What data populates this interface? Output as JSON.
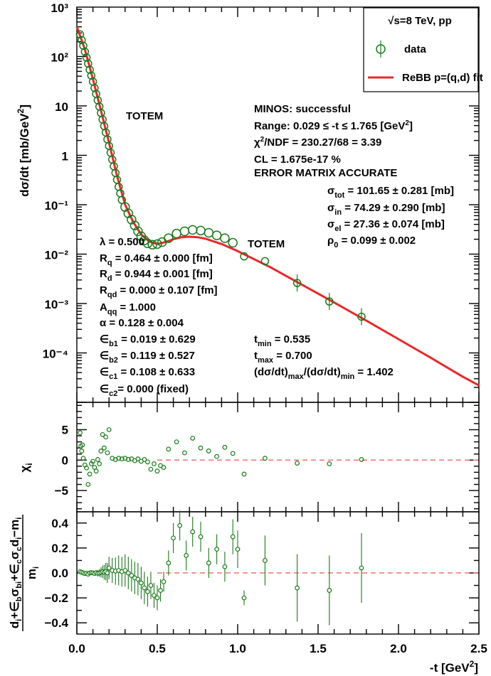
{
  "legend": {
    "title": "√s=8 TeV, pp",
    "data_label": "data",
    "fit_label": "ReBB p=(q,d) fit"
  },
  "labels": {
    "totem_1": "TOTEM",
    "totem_2": "TOTEM",
    "minos": "MINOS: successful",
    "range": "Range: 0.029 ≤ -t ≤ 1.765 [GeV²]",
    "chi2": "χ²/NDF = 230.27/68 = 3.39",
    "cl": "CL = 1.675e-17 %",
    "error_matrix": "ERROR MATRIX ACCURATE",
    "sigma_tot": "σtot = 101.65 ± 0.281 [mb]",
    "sigma_in": "σin = 74.29 ± 0.290 [mb]",
    "sigma_el": "σel = 27.36 ± 0.074 [mb]",
    "rho0": "ρ0 = 0.099 ± 0.002",
    "lambda": "λ = 0.500",
    "Rq": "Rq = 0.464 ± 0.000 [fm]",
    "Rd": "Rd = 0.944 ± 0.001 [fm]",
    "Rqd": "Rqd = 0.000 ± 0.107 [fm]",
    "Aqq": "Aqq = 1.000",
    "alpha": "α = 0.128 ± 0.004",
    "eb1": "∈b1 = 0.019 ± 0.629",
    "eb2": "∈b2 = 0.119 ± 0.527",
    "ec1": "∈c1 = 0.108 ± 0.633",
    "ec2": "∈c2= 0.000 (fixed)",
    "tmin": "tmin = 0.535",
    "tmax": "tmax = 0.700",
    "ratio": "(dσ/dt)max/(dσ/dt)min = 1.402"
  },
  "axes": {
    "top_ylabel": "dσ/dt [mb/GeV²]",
    "mid_ylabel": "χi",
    "bot_ylabel": "(di+∈bσbi+∈cσcdi−mi)/mi",
    "xlabel": "-t [GeV²]"
  },
  "chart_data": [
    {
      "type": "scatter",
      "panel": "cross-section",
      "log_y": true,
      "xlim": [
        0,
        2.5
      ],
      "ylim": [
        1e-05,
        1000
      ],
      "x_ticks": [
        "0.0",
        "0.5",
        "1.0",
        "1.5",
        "2.0",
        "2.5"
      ],
      "y_ticks": [
        "10³",
        "10²",
        "10",
        "1",
        "10⁻¹",
        "10⁻²",
        "10⁻³",
        "10⁻⁴"
      ],
      "data_points": [
        {
          "x": 0.02,
          "y": 280
        },
        {
          "x": 0.03,
          "y": 215
        },
        {
          "x": 0.04,
          "y": 165
        },
        {
          "x": 0.05,
          "y": 125
        },
        {
          "x": 0.06,
          "y": 95
        },
        {
          "x": 0.07,
          "y": 72
        },
        {
          "x": 0.08,
          "y": 54
        },
        {
          "x": 0.09,
          "y": 41
        },
        {
          "x": 0.1,
          "y": 31
        },
        {
          "x": 0.11,
          "y": 23
        },
        {
          "x": 0.12,
          "y": 17.5
        },
        {
          "x": 0.13,
          "y": 13
        },
        {
          "x": 0.14,
          "y": 9.7
        },
        {
          "x": 0.15,
          "y": 7.2
        },
        {
          "x": 0.16,
          "y": 5.3
        },
        {
          "x": 0.17,
          "y": 3.9
        },
        {
          "x": 0.18,
          "y": 2.9
        },
        {
          "x": 0.19,
          "y": 2.1
        },
        {
          "x": 0.2,
          "y": 1.55
        },
        {
          "x": 0.21,
          "y": 1.13
        },
        {
          "x": 0.22,
          "y": 0.82
        },
        {
          "x": 0.23,
          "y": 0.6
        },
        {
          "x": 0.24,
          "y": 0.44
        },
        {
          "x": 0.25,
          "y": 0.32
        },
        {
          "x": 0.26,
          "y": 0.23
        },
        {
          "x": 0.27,
          "y": 0.17
        },
        {
          "x": 0.28,
          "y": 0.125
        },
        {
          "x": 0.3,
          "y": 0.09
        },
        {
          "x": 0.32,
          "y": 0.067
        },
        {
          "x": 0.34,
          "y": 0.05
        },
        {
          "x": 0.36,
          "y": 0.038
        },
        {
          "x": 0.38,
          "y": 0.029
        },
        {
          "x": 0.4,
          "y": 0.023
        },
        {
          "x": 0.42,
          "y": 0.019
        },
        {
          "x": 0.44,
          "y": 0.0165
        },
        {
          "x": 0.47,
          "y": 0.0155
        },
        {
          "x": 0.5,
          "y": 0.016
        },
        {
          "x": 0.53,
          "y": 0.0175
        },
        {
          "x": 0.57,
          "y": 0.021
        },
        {
          "x": 0.62,
          "y": 0.026
        },
        {
          "x": 0.67,
          "y": 0.029
        },
        {
          "x": 0.72,
          "y": 0.031
        },
        {
          "x": 0.77,
          "y": 0.03
        },
        {
          "x": 0.82,
          "y": 0.027
        },
        {
          "x": 0.87,
          "y": 0.024
        },
        {
          "x": 0.92,
          "y": 0.021
        },
        {
          "x": 0.97,
          "y": 0.017
        },
        {
          "x": 1.04,
          "y": 0.009
        },
        {
          "x": 1.17,
          "y": 0.0072
        },
        {
          "x": 1.37,
          "y": 0.0026
        },
        {
          "x": 1.57,
          "y": 0.0011
        },
        {
          "x": 1.77,
          "y": 0.00054
        }
      ],
      "fit_curve": [
        {
          "x": 0.0,
          "y": 400
        },
        {
          "x": 0.05,
          "y": 140
        },
        {
          "x": 0.1,
          "y": 35
        },
        {
          "x": 0.15,
          "y": 8
        },
        {
          "x": 0.2,
          "y": 1.8
        },
        {
          "x": 0.25,
          "y": 0.38
        },
        {
          "x": 0.3,
          "y": 0.1
        },
        {
          "x": 0.35,
          "y": 0.045
        },
        {
          "x": 0.4,
          "y": 0.025
        },
        {
          "x": 0.45,
          "y": 0.018
        },
        {
          "x": 0.5,
          "y": 0.016
        },
        {
          "x": 0.55,
          "y": 0.0175
        },
        {
          "x": 0.6,
          "y": 0.02
        },
        {
          "x": 0.65,
          "y": 0.022
        },
        {
          "x": 0.7,
          "y": 0.0225
        },
        {
          "x": 0.75,
          "y": 0.022
        },
        {
          "x": 0.8,
          "y": 0.0205
        },
        {
          "x": 0.9,
          "y": 0.016
        },
        {
          "x": 1.0,
          "y": 0.0115
        },
        {
          "x": 1.2,
          "y": 0.0055
        },
        {
          "x": 1.4,
          "y": 0.0024
        },
        {
          "x": 1.6,
          "y": 0.00105
        },
        {
          "x": 1.8,
          "y": 0.00045
        },
        {
          "x": 2.0,
          "y": 0.00019
        },
        {
          "x": 2.2,
          "y": 8e-05
        },
        {
          "x": 2.4,
          "y": 3.3e-05
        },
        {
          "x": 2.5,
          "y": 2.2e-05
        }
      ]
    },
    {
      "type": "scatter",
      "panel": "chi",
      "xlim": [
        0,
        2.5
      ],
      "ylim": [
        -8.5,
        9.5
      ],
      "y_ticks": [
        "5",
        "0",
        "−5"
      ],
      "values": [
        {
          "x": 0.02,
          "y": 4.5
        },
        {
          "x": 0.025,
          "y": 2.3
        },
        {
          "x": 0.03,
          "y": 1.5
        },
        {
          "x": 0.035,
          "y": 2.5
        },
        {
          "x": 0.04,
          "y": 0.3
        },
        {
          "x": 0.05,
          "y": -0.8
        },
        {
          "x": 0.06,
          "y": -1.3
        },
        {
          "x": 0.07,
          "y": -4.0
        },
        {
          "x": 0.08,
          "y": -2.3
        },
        {
          "x": 0.09,
          "y": -0.6
        },
        {
          "x": 0.1,
          "y": -0.2
        },
        {
          "x": 0.11,
          "y": -1.2
        },
        {
          "x": 0.12,
          "y": -1.8
        },
        {
          "x": 0.13,
          "y": 0.1
        },
        {
          "x": 0.14,
          "y": -0.6
        },
        {
          "x": 0.15,
          "y": 1.5
        },
        {
          "x": 0.16,
          "y": 4.2
        },
        {
          "x": 0.17,
          "y": 2.0
        },
        {
          "x": 0.18,
          "y": 3.8
        },
        {
          "x": 0.19,
          "y": 1.2
        },
        {
          "x": 0.2,
          "y": 5.0
        },
        {
          "x": 0.22,
          "y": 0.3
        },
        {
          "x": 0.24,
          "y": 0.1
        },
        {
          "x": 0.26,
          "y": 0.3
        },
        {
          "x": 0.28,
          "y": 0.2
        },
        {
          "x": 0.3,
          "y": 0.3
        },
        {
          "x": 0.32,
          "y": 0.1
        },
        {
          "x": 0.34,
          "y": 0.2
        },
        {
          "x": 0.36,
          "y": -0.1
        },
        {
          "x": 0.38,
          "y": 0.2
        },
        {
          "x": 0.4,
          "y": -0.2
        },
        {
          "x": 0.42,
          "y": 0.1
        },
        {
          "x": 0.44,
          "y": -0.3
        },
        {
          "x": 0.46,
          "y": -1.5
        },
        {
          "x": 0.48,
          "y": -0.6
        },
        {
          "x": 0.5,
          "y": -1.8
        },
        {
          "x": 0.52,
          "y": -0.9
        },
        {
          "x": 0.54,
          "y": -1.2
        },
        {
          "x": 0.57,
          "y": 1.8
        },
        {
          "x": 0.62,
          "y": 3.0
        },
        {
          "x": 0.67,
          "y": 1.2
        },
        {
          "x": 0.72,
          "y": 3.6
        },
        {
          "x": 0.77,
          "y": 2.0
        },
        {
          "x": 0.82,
          "y": 1.5
        },
        {
          "x": 0.87,
          "y": 0.6
        },
        {
          "x": 0.92,
          "y": 2.1
        },
        {
          "x": 0.97,
          "y": 1.1
        },
        {
          "x": 1.04,
          "y": -2.3
        },
        {
          "x": 1.17,
          "y": 0.3
        },
        {
          "x": 1.37,
          "y": -0.5
        },
        {
          "x": 1.57,
          "y": -0.6
        },
        {
          "x": 1.77,
          "y": 0.1
        }
      ]
    },
    {
      "type": "scatter",
      "panel": "relative-residual",
      "xlim": [
        0,
        2.5
      ],
      "ylim": [
        -0.49,
        0.49
      ],
      "y_ticks": [
        "0.4",
        "0.2",
        "0.0",
        "−0.2",
        "−0.4"
      ],
      "values": [
        {
          "x": 0.02,
          "y": 0.01,
          "err": 0.005
        },
        {
          "x": 0.03,
          "y": 0.005,
          "err": 0.005
        },
        {
          "x": 0.04,
          "y": 0.0,
          "err": 0.005
        },
        {
          "x": 0.05,
          "y": -0.005,
          "err": 0.006
        },
        {
          "x": 0.06,
          "y": -0.003,
          "err": 0.006
        },
        {
          "x": 0.07,
          "y": -0.01,
          "err": 0.007
        },
        {
          "x": 0.08,
          "y": 0.0,
          "err": 0.008
        },
        {
          "x": 0.09,
          "y": 0.002,
          "err": 0.01
        },
        {
          "x": 0.1,
          "y": 0.0,
          "err": 0.012
        },
        {
          "x": 0.11,
          "y": -0.005,
          "err": 0.015
        },
        {
          "x": 0.12,
          "y": 0.002,
          "err": 0.02
        },
        {
          "x": 0.13,
          "y": -0.003,
          "err": 0.025
        },
        {
          "x": 0.14,
          "y": 0.0,
          "err": 0.03
        },
        {
          "x": 0.15,
          "y": 0.005,
          "err": 0.04
        },
        {
          "x": 0.16,
          "y": 0.01,
          "err": 0.05
        },
        {
          "x": 0.17,
          "y": 0.005,
          "err": 0.06
        },
        {
          "x": 0.18,
          "y": 0.01,
          "err": 0.07
        },
        {
          "x": 0.19,
          "y": 0.0,
          "err": 0.08
        },
        {
          "x": 0.2,
          "y": 0.04,
          "err": 0.09
        },
        {
          "x": 0.22,
          "y": 0.02,
          "err": 0.1
        },
        {
          "x": 0.24,
          "y": 0.015,
          "err": 0.11
        },
        {
          "x": 0.26,
          "y": 0.02,
          "err": 0.12
        },
        {
          "x": 0.28,
          "y": 0.01,
          "err": 0.12
        },
        {
          "x": 0.3,
          "y": 0.02,
          "err": 0.13
        },
        {
          "x": 0.32,
          "y": 0.0,
          "err": 0.13
        },
        {
          "x": 0.34,
          "y": -0.02,
          "err": 0.13
        },
        {
          "x": 0.36,
          "y": -0.04,
          "err": 0.13
        },
        {
          "x": 0.38,
          "y": -0.05,
          "err": 0.13
        },
        {
          "x": 0.4,
          "y": -0.08,
          "err": 0.13
        },
        {
          "x": 0.42,
          "y": -0.12,
          "err": 0.13
        },
        {
          "x": 0.44,
          "y": -0.15,
          "err": 0.12
        },
        {
          "x": 0.46,
          "y": -0.1,
          "err": 0.11
        },
        {
          "x": 0.48,
          "y": -0.18,
          "err": 0.1
        },
        {
          "x": 0.5,
          "y": -0.2,
          "err": 0.1
        },
        {
          "x": 0.52,
          "y": -0.14,
          "err": 0.09
        },
        {
          "x": 0.54,
          "y": -0.07,
          "err": 0.08
        },
        {
          "x": 0.57,
          "y": 0.08,
          "err": 0.1
        },
        {
          "x": 0.6,
          "y": 0.28,
          "err": 0.12
        },
        {
          "x": 0.64,
          "y": 0.38,
          "err": 0.12
        },
        {
          "x": 0.68,
          "y": 0.14,
          "err": 0.12
        },
        {
          "x": 0.72,
          "y": 0.33,
          "err": 0.12
        },
        {
          "x": 0.77,
          "y": 0.29,
          "err": 0.12
        },
        {
          "x": 0.82,
          "y": 0.08,
          "err": 0.12
        },
        {
          "x": 0.87,
          "y": 0.19,
          "err": 0.12
        },
        {
          "x": 0.92,
          "y": 0.05,
          "err": 0.12
        },
        {
          "x": 0.97,
          "y": 0.29,
          "err": 0.14
        },
        {
          "x": 1.0,
          "y": 0.19,
          "err": 0.15
        },
        {
          "x": 1.04,
          "y": -0.2,
          "err": 0.06
        },
        {
          "x": 1.17,
          "y": 0.1,
          "err": 0.2
        },
        {
          "x": 1.37,
          "y": -0.12,
          "err": 0.27
        },
        {
          "x": 1.57,
          "y": -0.14,
          "err": 0.28
        },
        {
          "x": 1.77,
          "y": 0.04,
          "err": 0.28
        }
      ]
    }
  ],
  "colors": {
    "data": "#1a7a1a",
    "fit": "#e8282a",
    "zero_line": "#f07070"
  }
}
